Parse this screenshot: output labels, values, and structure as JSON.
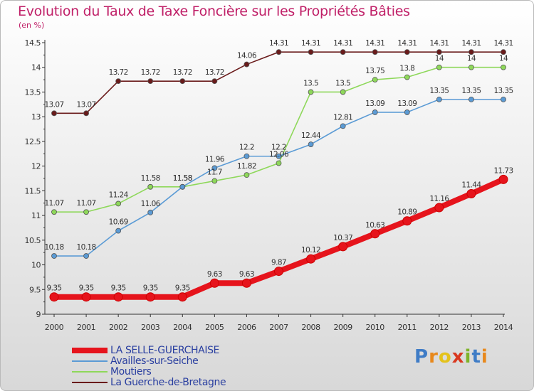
{
  "header": {
    "title": "Evolution du Taux de Taxe Foncière sur les Propriétés Bâties",
    "unit": "(en %)"
  },
  "chart_data": {
    "type": "line",
    "title": "Evolution du Taux de Taxe Foncière sur les Propriétés Bâties",
    "ylabel": "(en %)",
    "xlabel": "",
    "x": [
      2000,
      2001,
      2002,
      2003,
      2004,
      2005,
      2006,
      2007,
      2008,
      2009,
      2010,
      2011,
      2012,
      2013,
      2014
    ],
    "ylim": [
      9,
      14.5
    ],
    "yticks": [
      "9",
      "9.5",
      "10",
      "10.5",
      "11",
      "11.5",
      "12",
      "12.5",
      "13",
      "13.5",
      "14",
      "14.5"
    ],
    "grid": false,
    "legend": "bottom-left",
    "series": [
      {
        "name": "LA SELLE-GUERCHAISE",
        "color": "#e6141c",
        "values": [
          9.35,
          9.35,
          9.35,
          9.35,
          9.35,
          9.63,
          9.63,
          9.87,
          10.12,
          10.37,
          10.63,
          10.89,
          11.16,
          11.44,
          11.73
        ],
        "labels": [
          "9.35",
          "9.35",
          "9.35",
          "9.35",
          "9.35",
          "9.63",
          "9.63",
          "9.87",
          "10.12",
          "10.37",
          "10.63",
          "10.89",
          "11.16",
          "11.44",
          "11.73"
        ]
      },
      {
        "name": "Availles-sur-Seiche",
        "color": "#5b9bd5",
        "values": [
          10.18,
          10.18,
          10.69,
          11.06,
          11.58,
          11.96,
          12.2,
          12.2,
          12.44,
          12.81,
          13.09,
          13.09,
          13.35,
          13.35,
          13.35
        ],
        "labels": [
          "10.18",
          "10.18",
          "10.69",
          "11.06",
          "11.58",
          "11.96",
          "12.2",
          "12.2",
          "12.44",
          "12.81",
          "13.09",
          "13.09",
          "13.35",
          "13.35",
          "13.35"
        ]
      },
      {
        "name": "Moutiers",
        "color": "#8ed85a",
        "values": [
          11.07,
          11.07,
          11.24,
          11.58,
          11.58,
          11.7,
          11.82,
          12.06,
          13.5,
          13.5,
          13.75,
          13.8,
          14,
          14,
          14
        ],
        "labels": [
          "11.07",
          "11.07",
          "11.24",
          "11.58",
          "11.58",
          "11.7",
          "11.82",
          "12.06",
          "13.5",
          "13.5",
          "13.75",
          "13.8",
          "14",
          "14",
          "14"
        ]
      },
      {
        "name": "La Guerche-de-Bretagne",
        "color": "#6a1b1b",
        "values": [
          13.07,
          13.07,
          13.72,
          13.72,
          13.72,
          13.72,
          14.06,
          14.31,
          14.31,
          14.31,
          14.31,
          14.31,
          14.31,
          14.31,
          14.31
        ],
        "labels": [
          "13.07",
          "13.07",
          "13.72",
          "13.72",
          "13.72",
          "13.72",
          "14.06",
          "14.31",
          "14.31",
          "14.31",
          "14.31",
          "14.31",
          "14.31",
          "14.31",
          "14.31"
        ]
      }
    ]
  },
  "legend": {
    "items": [
      {
        "label": "LA SELLE-GUERCHAISE",
        "color": "#e6141c"
      },
      {
        "label": "Availles-sur-Seiche",
        "color": "#5b9bd5"
      },
      {
        "label": "Moutiers",
        "color": "#8ed85a"
      },
      {
        "label": "La Guerche-de-Bretagne",
        "color": "#6a1b1b"
      }
    ]
  },
  "logo": {
    "letters": [
      "P",
      "r",
      "o",
      "x",
      "i",
      "t",
      "i"
    ]
  }
}
